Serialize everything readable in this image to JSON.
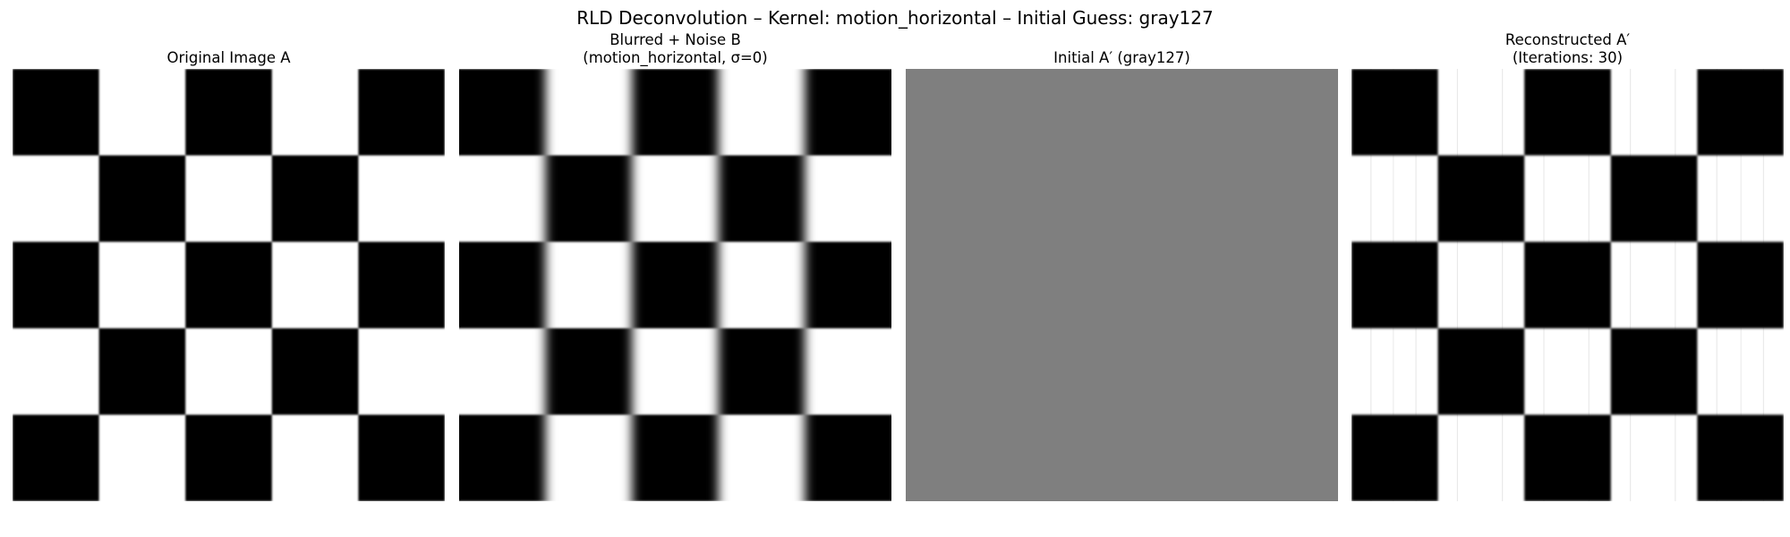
{
  "figure": {
    "title": "RLD Deconvolution – Kernel: motion_horizontal – Initial Guess: gray127"
  },
  "panels": [
    {
      "id": "original",
      "title_lines": [
        "Original Image A"
      ],
      "image": "checkerboard-soft-edges"
    },
    {
      "id": "blurred",
      "title_lines": [
        "Blurred + Noise B",
        "(motion_horizontal, σ=0)"
      ],
      "image": "checkerboard-horizontal-motion-blur"
    },
    {
      "id": "initial",
      "title_lines": [
        "Initial A′ (gray127)"
      ],
      "image": "uniform-gray",
      "fill_color": "#7f7f7f"
    },
    {
      "id": "reconstructed",
      "title_lines": [
        "Reconstructed A′",
        "(Iterations: 30)"
      ],
      "image": "checkerboard-reconstructed-faint-vertical-ringing"
    }
  ],
  "colors": {
    "black": "#000000",
    "white": "#ffffff",
    "gray127": "#7f7f7f"
  }
}
